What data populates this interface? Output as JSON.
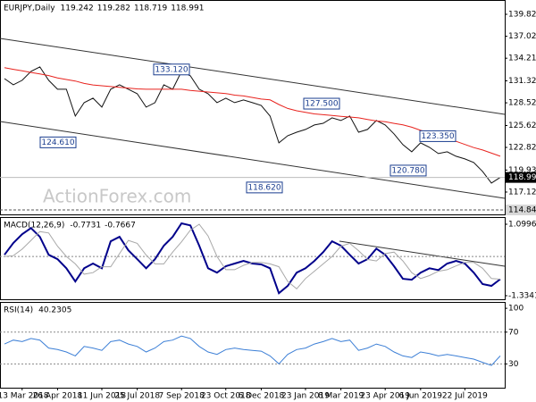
{
  "chart_data": [
    {
      "type": "line",
      "title": "EURJPY,Daily",
      "header_values": [
        119.242,
        119.282,
        118.719,
        118.991
      ],
      "watermark": "ActionForex.com",
      "series": [
        {
          "color": "#111111",
          "values": [
            131.61,
            130.82,
            131.39,
            132.53,
            133.1,
            131.39,
            130.25,
            130.25,
            126.83,
            128.54,
            129.11,
            127.97,
            130.25,
            130.82,
            130.25,
            129.68,
            127.97,
            128.54,
            130.82,
            130.25,
            132.53,
            131.96,
            130.25,
            129.68,
            128.54,
            129.11,
            128.54,
            128.88,
            128.54,
            128.19,
            126.83,
            123.41,
            124.32,
            124.77,
            125.12,
            125.69,
            125.91,
            126.6,
            126.26,
            126.83,
            124.77,
            125.12,
            126.26,
            125.69,
            124.55,
            123.18,
            122.27,
            123.41,
            122.84,
            122.04,
            122.27,
            121.7,
            121.35,
            120.9,
            119.76,
            118.28,
            118.991
          ]
        },
        {
          "color": "#e8231e",
          "values": [
            133.0,
            132.8,
            132.6,
            132.4,
            132.2,
            132.0,
            131.7,
            131.5,
            131.3,
            131.0,
            130.8,
            130.7,
            130.6,
            130.5,
            130.4,
            130.3,
            130.25,
            130.25,
            130.25,
            130.25,
            130.25,
            130.1,
            130.0,
            129.9,
            129.8,
            129.7,
            129.5,
            129.4,
            129.2,
            129.0,
            128.9,
            128.3,
            127.8,
            127.5,
            127.3,
            127.1,
            127.0,
            126.9,
            126.8,
            126.7,
            126.6,
            126.4,
            126.2,
            126.1,
            125.9,
            125.7,
            125.4,
            125.0,
            124.7,
            124.4,
            124.0,
            123.6,
            123.2,
            122.8,
            122.5,
            122.1,
            121.7
          ]
        }
      ],
      "ylim": [
        114.27,
        141.65
      ],
      "yticks": [
        139.825,
        {
          "value": 137.02,
          "label": "137.020"
        },
        134.215,
        131.325,
        {
          "value": 128.52,
          "label": "128.520"
        },
        {
          "value": 125.62,
          "label": "125.620"
        },
        122.825,
        119.935,
        117.125
      ],
      "annotations": [
        {
          "value": 133.12,
          "label": "133.120"
        },
        {
          "value": 124.61,
          "label": "124.610"
        },
        {
          "value": 127.5,
          "label": "127.500"
        },
        {
          "value": 118.62,
          "label": "118.620"
        },
        {
          "value": 123.35,
          "label": "123.350"
        },
        {
          "value": 120.78,
          "label": "120.780"
        }
      ],
      "support_level": {
        "value": 114.84,
        "label": "114.840"
      },
      "last_price": 118.991
    },
    {
      "type": "line",
      "title": "MACD(12,26,9)",
      "header_values": [
        -0.7731,
        -0.7667
      ],
      "series": [
        {
          "color": "#00008b",
          "values": [
            0.06,
            0.46,
            0.76,
            0.97,
            0.67,
            0.06,
            -0.09,
            -0.4,
            -0.85,
            -0.4,
            -0.24,
            -0.4,
            0.52,
            0.67,
            0.21,
            -0.09,
            -0.4,
            -0.09,
            0.37,
            0.67,
            1.13,
            1.06,
            0.37,
            -0.4,
            -0.55,
            -0.33,
            -0.24,
            -0.15,
            -0.24,
            -0.27,
            -0.4,
            -1.25,
            -1.0,
            -0.55,
            -0.4,
            -0.15,
            0.15,
            0.52,
            0.37,
            0.06,
            -0.24,
            -0.09,
            0.27,
            0.06,
            -0.33,
            -0.76,
            -0.79,
            -0.55,
            -0.4,
            -0.46,
            -0.24,
            -0.15,
            -0.24,
            -0.55,
            -0.94,
            -1.0,
            -0.77
          ]
        },
        {
          "color": "#a8a8a8",
          "values": [
            0.0,
            0.03,
            0.25,
            0.55,
            0.85,
            0.8,
            0.35,
            0.0,
            -0.25,
            -0.6,
            -0.55,
            -0.35,
            -0.35,
            0.1,
            0.55,
            0.45,
            0.05,
            -0.25,
            -0.25,
            0.15,
            0.5,
            0.9,
            1.1,
            0.7,
            0.0,
            -0.45,
            -0.45,
            -0.3,
            -0.2,
            -0.2,
            -0.25,
            -0.35,
            -0.85,
            -1.1,
            -0.75,
            -0.5,
            -0.25,
            0.0,
            0.35,
            0.45,
            0.2,
            -0.1,
            -0.15,
            0.1,
            0.15,
            -0.15,
            -0.55,
            -0.75,
            -0.65,
            -0.5,
            -0.45,
            -0.32,
            -0.2,
            -0.2,
            -0.4,
            -0.75,
            -0.77
          ]
        }
      ],
      "ylim": [
        -1.456,
        1.343
      ],
      "yticks": [
        1.0996,
        -1.3341
      ]
    },
    {
      "type": "line",
      "title": "RSI(14)",
      "header_values": [
        40.2305
      ],
      "categories": [
        null,
        null,
        "13 Mar 2018",
        null,
        null,
        null,
        "26 Apr 2018",
        null,
        null,
        null,
        null,
        "11 Jun 2018",
        null,
        null,
        null,
        "25 Jul 2018",
        null,
        null,
        null,
        null,
        "7 Sep 2018",
        null,
        null,
        null,
        null,
        "23 Oct 2018",
        null,
        null,
        null,
        "6 Dec 2018",
        null,
        null,
        null,
        null,
        "23 Jan 2019",
        null,
        null,
        null,
        "8 Mar 2019",
        null,
        null,
        null,
        null,
        "23 Apr 2019",
        null,
        null,
        null,
        "6 Jun 2019",
        null,
        null,
        null,
        null,
        "22 Jul 2019",
        null,
        null,
        null,
        null
      ],
      "series": [
        {
          "color": "#3c7fd6",
          "values": [
            55,
            60,
            58,
            62,
            60,
            50,
            48,
            45,
            40,
            52,
            50,
            47,
            58,
            60,
            55,
            52,
            45,
            50,
            58,
            60,
            65,
            62,
            52,
            45,
            42,
            48,
            50,
            48,
            47,
            46,
            40,
            30,
            42,
            48,
            50,
            55,
            58,
            62,
            58,
            60,
            47,
            50,
            55,
            52,
            45,
            40,
            38,
            45,
            43,
            40,
            42,
            40,
            38,
            36,
            32,
            28,
            40
          ]
        }
      ],
      "ylim": [
        0,
        108
      ],
      "yticks": [
        30,
        70,
        100
      ]
    }
  ]
}
